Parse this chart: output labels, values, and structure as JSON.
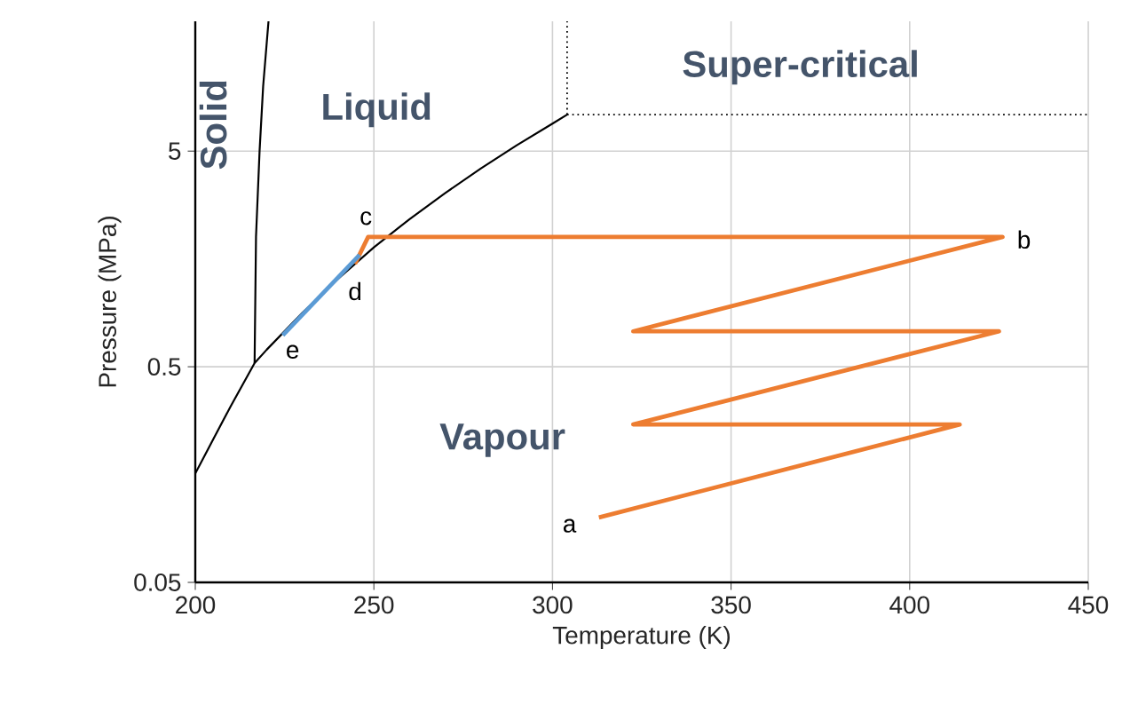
{
  "chart_data": {
    "type": "line",
    "xlabel": "Temperature (K)",
    "ylabel": "Pressure (MPa)",
    "xlim": [
      200,
      450
    ],
    "ylim": [
      0.05,
      20
    ],
    "xticks": [
      200,
      250,
      300,
      350,
      400,
      450
    ],
    "yticks": [
      0.05,
      0.5,
      5
    ],
    "log": "y",
    "grid": true,
    "marker": "none",
    "line_style": "solid",
    "series": [
      {
        "color": "#000000",
        "x": [
          200,
          205,
          210,
          216.6,
          220,
          230,
          240,
          250,
          260,
          270,
          280,
          290,
          300,
          304.1
        ],
        "values": [
          0.16,
          0.23,
          0.33,
          0.52,
          0.6,
          0.89,
          1.28,
          1.79,
          2.42,
          3.2,
          4.16,
          5.32,
          6.71,
          7.38
        ]
      },
      {
        "color": "#000000",
        "x": [
          216.6,
          217,
          218,
          219,
          220.5
        ],
        "values": [
          0.52,
          2,
          5,
          10,
          20
        ]
      },
      {
        "color": "#000000",
        "line_style": "dotted",
        "x": [
          304.1,
          304.1
        ],
        "values": [
          7.38,
          20
        ]
      },
      {
        "color": "#000000",
        "line_style": "dotted",
        "x": [
          304.1,
          450
        ],
        "values": [
          7.38,
          7.38
        ]
      },
      {
        "color": "#ed7d31",
        "x": [
          313,
          414,
          322.6,
          425,
          322.6,
          426,
          248.4,
          244.7
        ],
        "values": [
          0.1,
          0.27,
          0.27,
          0.73,
          0.73,
          2.0,
          2.0,
          1.5
        ]
      },
      {
        "color": "#5b9bd5",
        "x": [
          246,
          224.5
        ],
        "values": [
          1.65,
          0.7
        ]
      }
    ],
    "annotations": [
      "Solid",
      "Liquid",
      "Super-critical",
      "Vapour",
      "a",
      "b",
      "c",
      "d",
      "e"
    ]
  }
}
